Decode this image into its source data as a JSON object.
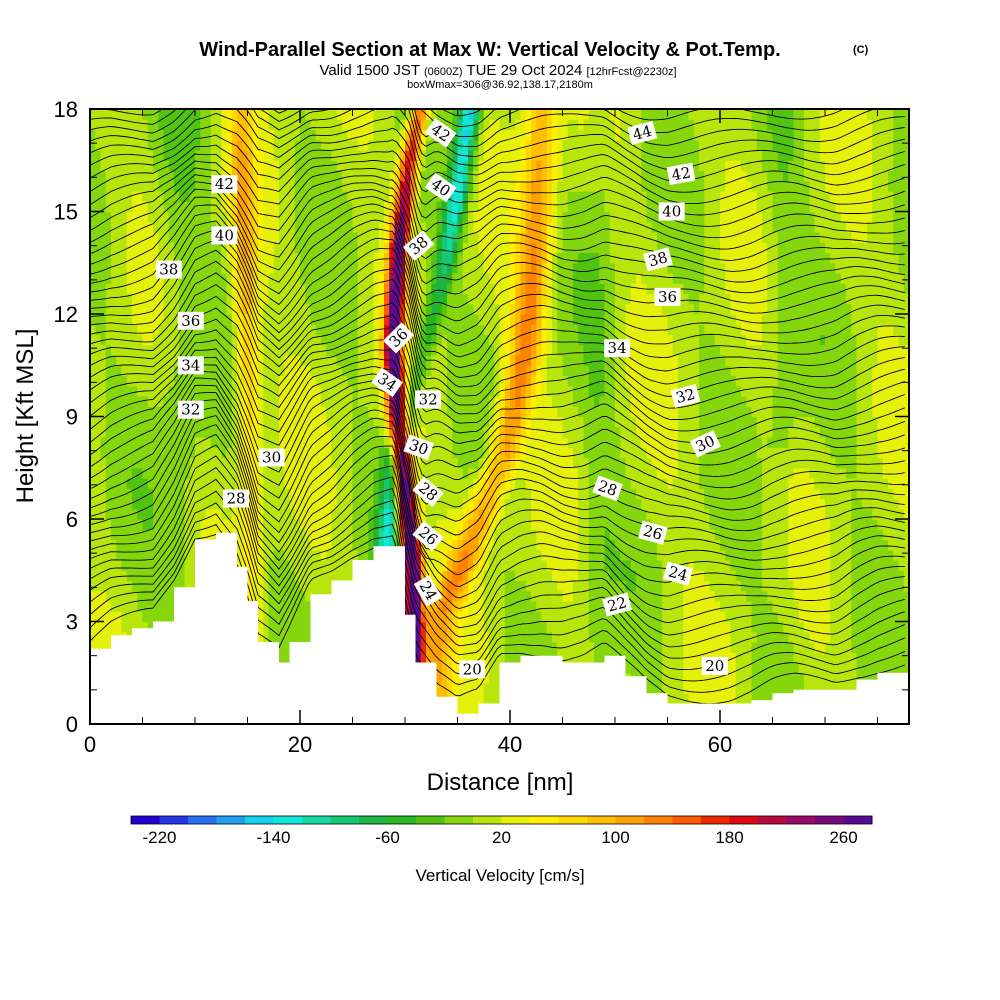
{
  "chart_data": {
    "type": "heatmap",
    "title": "Wind-Parallel Section at Max W: Vertical Velocity & Pot.Temp.",
    "title_mark": "(C)",
    "subtitle_parts": [
      "Valid 1500 JST",
      "(0600Z)",
      "TUE 29 Oct 2024",
      "[12hrFcst@2230z]"
    ],
    "subtitle2": "boxWmax=306@36.92,138.17,2180m",
    "xlabel": "Distance [nm]",
    "ylabel": "Height [Kft MSL]",
    "xlim": [
      0,
      78
    ],
    "ylim": [
      0,
      18
    ],
    "xticks": [
      0,
      20,
      40,
      60
    ],
    "yticks": [
      0,
      3,
      6,
      9,
      12,
      15,
      18
    ],
    "grid": false,
    "colorbar": {
      "label": "Vertical Velocity [cm/s]",
      "min": -240,
      "step": 20,
      "tick_values": [
        -220,
        -140,
        -60,
        20,
        100,
        180,
        260
      ],
      "colors": [
        "#1f00d0",
        "#2535e8",
        "#2a6ef2",
        "#22a0f2",
        "#12d2f0",
        "#12e8d8",
        "#12dca4",
        "#17c873",
        "#1cb444",
        "#2ab41d",
        "#51c411",
        "#86d60e",
        "#b8e60c",
        "#e6f00a",
        "#fff000",
        "#ffd800",
        "#ffbe00",
        "#ffa200",
        "#ff8200",
        "#ff5c00",
        "#f02a00",
        "#dc0a14",
        "#b8083c",
        "#980a64",
        "#780a80",
        "#5a0a90"
      ]
    },
    "terrain": {
      "description": "terrain height profile (Kft) vs distance (nm)",
      "x": [
        0,
        2,
        4,
        6,
        8,
        10,
        12,
        14,
        15,
        16,
        18,
        19,
        21,
        23,
        25,
        27,
        29,
        30,
        31,
        33,
        35,
        37,
        39,
        41,
        43,
        45,
        47,
        49,
        51,
        53,
        55,
        57,
        59,
        61,
        63,
        65,
        67,
        69,
        71,
        73,
        75,
        78
      ],
      "y": [
        2.2,
        2.6,
        2.8,
        3.0,
        4.0,
        5.4,
        5.6,
        4.6,
        3.6,
        2.4,
        1.8,
        2.4,
        3.8,
        4.2,
        4.8,
        5.2,
        5.2,
        3.2,
        1.8,
        0.8,
        0.3,
        0.6,
        1.8,
        2.0,
        2.0,
        1.8,
        1.8,
        2.0,
        1.4,
        0.9,
        0.6,
        0.6,
        0.6,
        0.6,
        0.7,
        0.9,
        1.0,
        1.0,
        1.0,
        1.3,
        1.5,
        1.6
      ]
    },
    "isentrope_labels": [
      {
        "text": "42",
        "x": 12.8,
        "y": 15.8,
        "rot": 0
      },
      {
        "text": "40",
        "x": 12.8,
        "y": 14.3,
        "rot": 0
      },
      {
        "text": "38",
        "x": 7.5,
        "y": 13.3,
        "rot": 0
      },
      {
        "text": "36",
        "x": 9.6,
        "y": 11.8,
        "rot": 0
      },
      {
        "text": "34",
        "x": 9.6,
        "y": 10.5,
        "rot": 0
      },
      {
        "text": "32",
        "x": 9.6,
        "y": 9.2,
        "rot": 0
      },
      {
        "text": "30",
        "x": 17.3,
        "y": 7.8,
        "rot": 0
      },
      {
        "text": "28",
        "x": 13.9,
        "y": 6.6,
        "rot": 0
      },
      {
        "text": "42",
        "x": 33.4,
        "y": 17.3,
        "rot": 35
      },
      {
        "text": "40",
        "x": 33.4,
        "y": 15.7,
        "rot": 35
      },
      {
        "text": "38",
        "x": 31.3,
        "y": 14.0,
        "rot": -40
      },
      {
        "text": "36",
        "x": 29.4,
        "y": 11.3,
        "rot": -45
      },
      {
        "text": "34",
        "x": 28.3,
        "y": 10.0,
        "rot": 35
      },
      {
        "text": "32",
        "x": 32.2,
        "y": 9.5,
        "rot": 0
      },
      {
        "text": "30",
        "x": 31.3,
        "y": 8.1,
        "rot": 20
      },
      {
        "text": "28",
        "x": 32.2,
        "y": 6.8,
        "rot": 40
      },
      {
        "text": "26",
        "x": 32.2,
        "y": 5.5,
        "rot": 40
      },
      {
        "text": "24",
        "x": 32.2,
        "y": 3.9,
        "rot": 60
      },
      {
        "text": "20",
        "x": 36.4,
        "y": 1.6,
        "rot": 0
      },
      {
        "text": "44",
        "x": 52.6,
        "y": 17.3,
        "rot": -15
      },
      {
        "text": "42",
        "x": 56.3,
        "y": 16.1,
        "rot": -10
      },
      {
        "text": "40",
        "x": 55.4,
        "y": 15.0,
        "rot": 0
      },
      {
        "text": "38",
        "x": 54.1,
        "y": 13.6,
        "rot": -15
      },
      {
        "text": "36",
        "x": 55.0,
        "y": 12.5,
        "rot": 0
      },
      {
        "text": "34",
        "x": 50.2,
        "y": 11.0,
        "rot": 0
      },
      {
        "text": "32",
        "x": 56.7,
        "y": 9.6,
        "rot": -15
      },
      {
        "text": "30",
        "x": 58.6,
        "y": 8.2,
        "rot": -25
      },
      {
        "text": "28",
        "x": 49.3,
        "y": 6.9,
        "rot": 20
      },
      {
        "text": "26",
        "x": 53.6,
        "y": 5.6,
        "rot": 15
      },
      {
        "text": "24",
        "x": 56.0,
        "y": 4.4,
        "rot": 15
      },
      {
        "text": "22",
        "x": 50.2,
        "y": 3.5,
        "rot": -15
      },
      {
        "text": "20",
        "x": 59.5,
        "y": 1.7,
        "rot": 0
      }
    ],
    "velocity_features": {
      "description": "main vertical-velocity bands (cm/s) used to render the shaded field",
      "bands": [
        {
          "name": "updraft core",
          "x": [
            30.8,
            29.6,
            28.8,
            29.4,
            30.4,
            31.5
          ],
          "w": [
            320,
            300,
            280,
            260,
            200,
            150
          ],
          "y": [
            4.5,
            8,
            11,
            14,
            16.5,
            18
          ],
          "width": 0.9
        },
        {
          "name": "downdraft",
          "x": [
            28.2,
            29.0,
            31.0,
            33.5,
            35.0,
            36.2
          ],
          "w": [
            -120,
            -100,
            -60,
            -80,
            -140,
            -160
          ],
          "y": [
            5,
            8,
            10,
            13,
            15.5,
            18
          ],
          "width": 1.0
        },
        {
          "name": "lee updraft",
          "x": [
            33.0,
            36.0,
            39.5,
            41.5,
            42.5,
            43.0
          ],
          "w": [
            90,
            100,
            110,
            120,
            110,
            90
          ],
          "y": [
            3,
            5,
            8,
            11,
            14,
            18
          ],
          "width": 1.6
        },
        {
          "name": "upstream updraft",
          "x": [
            15.5,
            15.2,
            15.0,
            14.8,
            14.5,
            14.3
          ],
          "w": [
            40,
            60,
            80,
            90,
            80,
            60
          ],
          "y": [
            4,
            7,
            10,
            13,
            16,
            18
          ],
          "width": 1.2
        }
      ]
    }
  }
}
